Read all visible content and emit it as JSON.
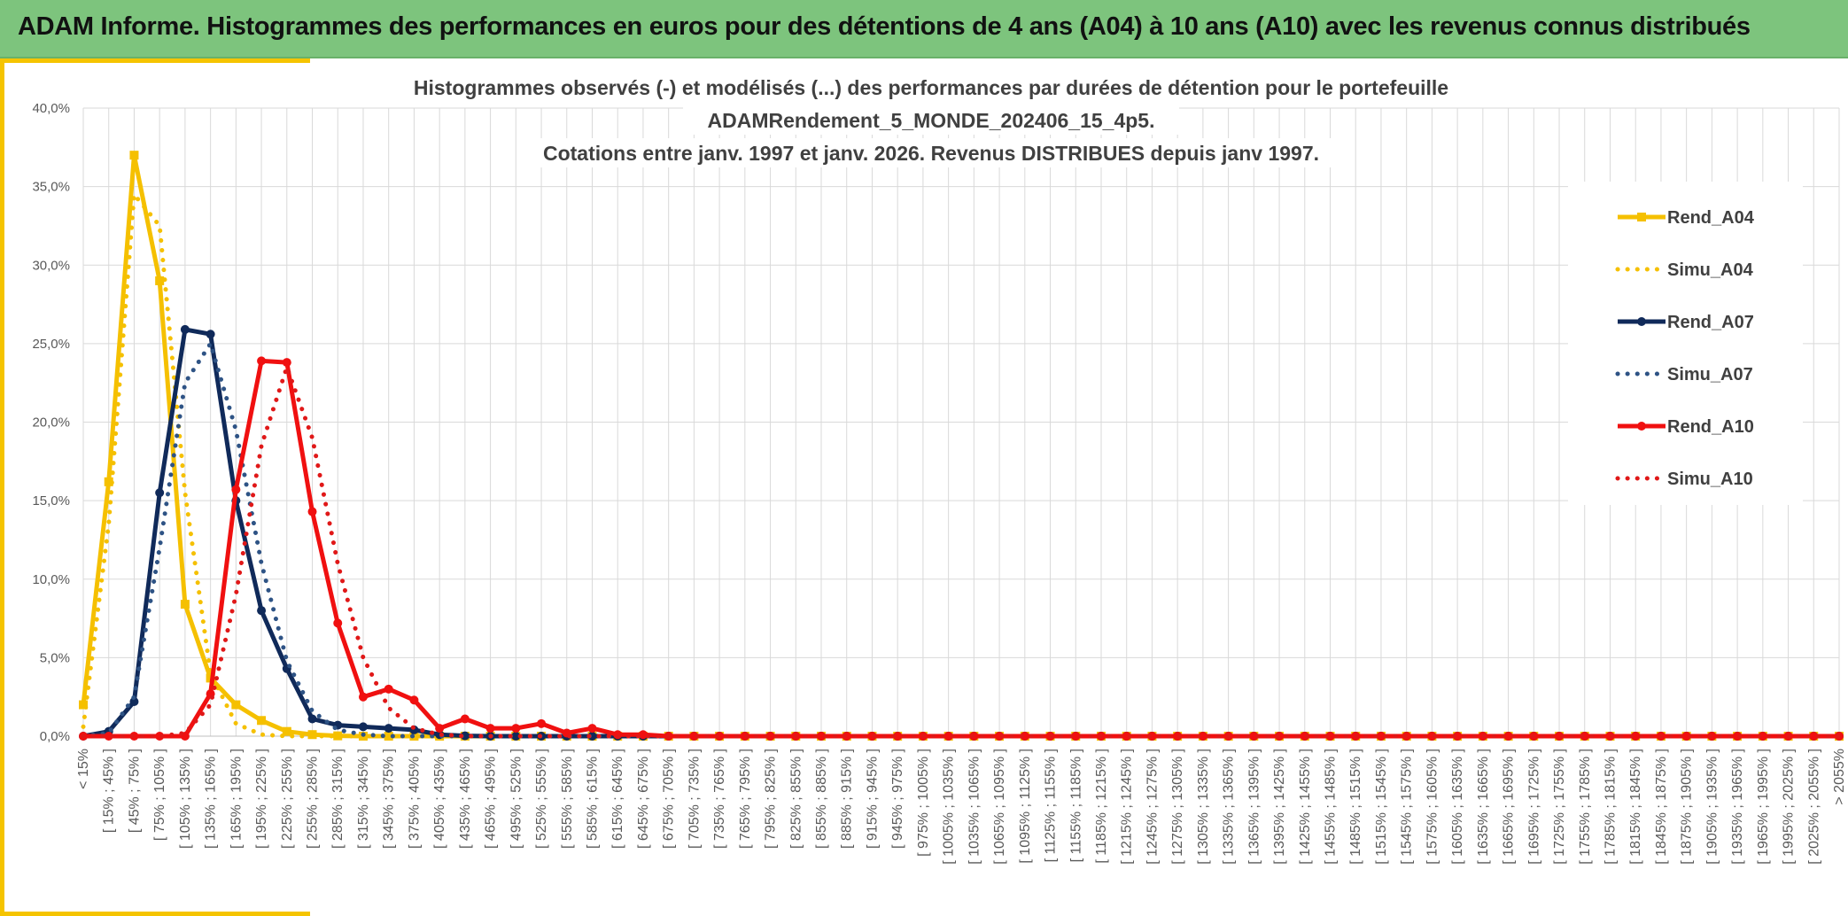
{
  "header": {
    "title": "ADAM Informe. Histogrammes des performances en euros pour des détentions de 4 ans (A04) à 10 ans (A10) avec les revenus connus distribués"
  },
  "chart_data": {
    "type": "line",
    "title_lines": [
      "Histogrammes observés (-) et modélisés (...) des performances par durées de détention pour le portefeuille",
      "ADAMRendement_5_MONDE_202406_15_4p5.",
      "Cotations entre janv. 1997 et janv. 2026. Revenus DISTRIBUES depuis janv 1997."
    ],
    "ylim": [
      0,
      40
    ],
    "y_ticks": [
      "0,0%",
      "5,0%",
      "10,0%",
      "15,0%",
      "20,0%",
      "25,0%",
      "30,0%",
      "35,0%",
      "40,0%"
    ],
    "categories": [
      "< 15%",
      "[ 15% ; 45% ]",
      "[ 45% ; 75% ]",
      "[ 75% ; 105% ]",
      "[ 105% ; 135% ]",
      "[ 135% ; 165% ]",
      "[ 165% ; 195% ]",
      "[ 195% ; 225% ]",
      "[ 225% ; 255% ]",
      "[ 255% ; 285% ]",
      "[ 285% ; 315% ]",
      "[ 315% ; 345% ]",
      "[ 345% ; 375% ]",
      "[ 375% ; 405% ]",
      "[ 405% ; 435% ]",
      "[ 435% ; 465% ]",
      "[ 465% ; 495% ]",
      "[ 495% ; 525% ]",
      "[ 525% ; 555% ]",
      "[ 555% ; 585% ]",
      "[ 585% ; 615% ]",
      "[ 615% ; 645% ]",
      "[ 645% ; 675% ]",
      "[ 675% ; 705% ]",
      "[ 705% ; 735% ]",
      "[ 735% ; 765% ]",
      "[ 765% ; 795% ]",
      "[ 795% ; 825% ]",
      "[ 825% ; 855% ]",
      "[ 855% ; 885% ]",
      "[ 885% ; 915% ]",
      "[ 915% ; 945% ]",
      "[ 945% ; 975% ]",
      "[ 975% ; 1005% ]",
      "[ 1005% ; 1035% ]",
      "[ 1035% ; 1065% ]",
      "[ 1065% ; 1095% ]",
      "[ 1095% ; 1125% ]",
      "[ 1125% ; 1155% ]",
      "[ 1155% ; 1185% ]",
      "[ 1185% ; 1215% ]",
      "[ 1215% ; 1245% ]",
      "[ 1245% ; 1275% ]",
      "[ 1275% ; 1305% ]",
      "[ 1305% ; 1335% ]",
      "[ 1335% ; 1365% ]",
      "[ 1365% ; 1395% ]",
      "[ 1395% ; 1425% ]",
      "[ 1425% ; 1455% ]",
      "[ 1455% ; 1485% ]",
      "[ 1485% ; 1515% ]",
      "[ 1515% ; 1545% ]",
      "[ 1545% ; 1575% ]",
      "[ 1575% ; 1605% ]",
      "[ 1605% ; 1635% ]",
      "[ 1635% ; 1665% ]",
      "[ 1665% ; 1695% ]",
      "[ 1695% ; 1725% ]",
      "[ 1725% ; 1755% ]",
      "[ 1755% ; 1785% ]",
      "[ 1785% ; 1815% ]",
      "[ 1815% ; 1845% ]",
      "[ 1845% ; 1875% ]",
      "[ 1875% ; 1905% ]",
      "[ 1905% ; 1935% ]",
      "[ 1935% ; 1965% ]",
      "[ 1965% ; 1995% ]",
      "[ 1995% ; 2025% ]",
      "[ 2025% ; 2055% ]",
      "> 2055%"
    ],
    "series": [
      {
        "name": "Rend_A04",
        "color": "#f5c000",
        "style": "solid",
        "marker": "square",
        "values": [
          2.0,
          16.2,
          37.0,
          29.0,
          8.4,
          3.7,
          2.0,
          1.0,
          0.3,
          0.1,
          0.02,
          0,
          0,
          0,
          0,
          0,
          0,
          0,
          0,
          0,
          0,
          0,
          0,
          0,
          0,
          0,
          0,
          0,
          0,
          0,
          0,
          0,
          0,
          0,
          0,
          0,
          0,
          0,
          0,
          0,
          0,
          0,
          0,
          0,
          0,
          0,
          0,
          0,
          0,
          0,
          0,
          0,
          0,
          0,
          0,
          0,
          0,
          0,
          0,
          0,
          0,
          0,
          0,
          0,
          0,
          0,
          0,
          0,
          0,
          0
        ]
      },
      {
        "name": "Simu_A04",
        "color": "#f5c000",
        "style": "dotted",
        "marker": "none",
        "values": [
          0.6,
          13.5,
          34.5,
          32.5,
          15.5,
          4.0,
          0.8,
          0.1,
          0,
          0,
          0,
          0,
          0,
          0,
          0,
          0,
          0,
          0,
          0,
          0,
          0,
          0,
          0,
          0,
          0,
          0,
          0,
          0,
          0,
          0,
          0,
          0,
          0,
          0,
          0,
          0,
          0,
          0,
          0,
          0,
          0,
          0,
          0,
          0,
          0,
          0,
          0,
          0,
          0,
          0,
          0,
          0,
          0,
          0,
          0,
          0,
          0,
          0,
          0,
          0,
          0,
          0,
          0,
          0,
          0,
          0,
          0,
          0,
          0,
          0
        ]
      },
      {
        "name": "Rend_A07",
        "color": "#102a5a",
        "style": "solid",
        "marker": "circle",
        "values": [
          0,
          0.3,
          2.2,
          15.5,
          25.9,
          25.6,
          15.0,
          8.0,
          4.3,
          1.1,
          0.7,
          0.6,
          0.5,
          0.4,
          0.1,
          0.02,
          0,
          0,
          0,
          0,
          0,
          0,
          0,
          0,
          0,
          0,
          0,
          0,
          0,
          0,
          0,
          0,
          0,
          0,
          0,
          0,
          0,
          0,
          0,
          0,
          0,
          0,
          0,
          0,
          0,
          0,
          0,
          0,
          0,
          0,
          0,
          0,
          0,
          0,
          0,
          0,
          0,
          0,
          0,
          0,
          0,
          0,
          0,
          0,
          0,
          0,
          0,
          0,
          0,
          0
        ]
      },
      {
        "name": "Simu_A07",
        "color": "#2e5385",
        "style": "dotted",
        "marker": "none",
        "values": [
          0,
          0.2,
          2.5,
          12.0,
          22.5,
          25.0,
          19.5,
          11.0,
          4.8,
          1.6,
          0.4,
          0.1,
          0,
          0,
          0,
          0,
          0,
          0,
          0,
          0,
          0,
          0,
          0,
          0,
          0,
          0,
          0,
          0,
          0,
          0,
          0,
          0,
          0,
          0,
          0,
          0,
          0,
          0,
          0,
          0,
          0,
          0,
          0,
          0,
          0,
          0,
          0,
          0,
          0,
          0,
          0,
          0,
          0,
          0,
          0,
          0,
          0,
          0,
          0,
          0,
          0,
          0,
          0,
          0,
          0,
          0,
          0,
          0,
          0,
          0
        ]
      },
      {
        "name": "Rend_A10",
        "color": "#f01010",
        "style": "solid",
        "marker": "circle",
        "values": [
          0,
          0,
          0,
          0,
          0,
          2.7,
          15.7,
          23.9,
          23.8,
          14.3,
          7.2,
          2.5,
          3.0,
          2.3,
          0.5,
          1.1,
          0.5,
          0.5,
          0.8,
          0.2,
          0.5,
          0.1,
          0.1,
          0,
          0,
          0,
          0,
          0,
          0,
          0,
          0,
          0,
          0,
          0,
          0,
          0,
          0,
          0,
          0,
          0,
          0,
          0,
          0,
          0,
          0,
          0,
          0,
          0,
          0,
          0,
          0,
          0,
          0,
          0,
          0,
          0,
          0,
          0,
          0,
          0,
          0,
          0,
          0,
          0,
          0,
          0,
          0,
          0,
          0,
          0
        ]
      },
      {
        "name": "Simu_A10",
        "color": "#e01818",
        "style": "dotted",
        "marker": "none",
        "values": [
          0,
          0,
          0,
          0,
          0.2,
          2.0,
          9.0,
          18.5,
          23.5,
          19.0,
          11.0,
          5.0,
          1.8,
          0.5,
          0.1,
          0,
          0,
          0,
          0,
          0,
          0,
          0,
          0,
          0,
          0,
          0,
          0,
          0,
          0,
          0,
          0,
          0,
          0,
          0,
          0,
          0,
          0,
          0,
          0,
          0,
          0,
          0,
          0,
          0,
          0,
          0,
          0,
          0,
          0,
          0,
          0,
          0,
          0,
          0,
          0,
          0,
          0,
          0,
          0,
          0,
          0,
          0,
          0,
          0,
          0,
          0,
          0,
          0,
          0,
          0
        ]
      }
    ],
    "legend_position": "right",
    "grid": true
  }
}
